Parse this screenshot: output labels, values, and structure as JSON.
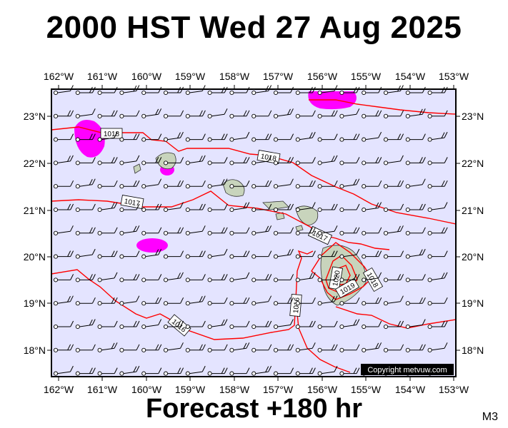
{
  "title": "2000 HST Wed 27 Aug 2025",
  "footer": "Forecast +180 hr",
  "model_tag": "M3",
  "copyright": "Copyright metvuw.com",
  "longitude_labels": [
    "162°W",
    "161°W",
    "160°W",
    "159°W",
    "158°W",
    "157°W",
    "156°W",
    "155°W",
    "154°W",
    "153°W"
  ],
  "latitude_labels": [
    "23°N",
    "22°N",
    "21°N",
    "20°N",
    "19°N",
    "18°N"
  ],
  "isobar_labels": [
    "1018",
    "1018",
    "1017",
    "1017",
    "1016",
    "1016",
    "1020",
    "1019",
    "1018"
  ],
  "colors": {
    "ocean": "#e4e4ff",
    "isobar": "#ff0000",
    "rain": "#ff00ff",
    "land": "#c8d4bc",
    "frame": "#000000"
  }
}
